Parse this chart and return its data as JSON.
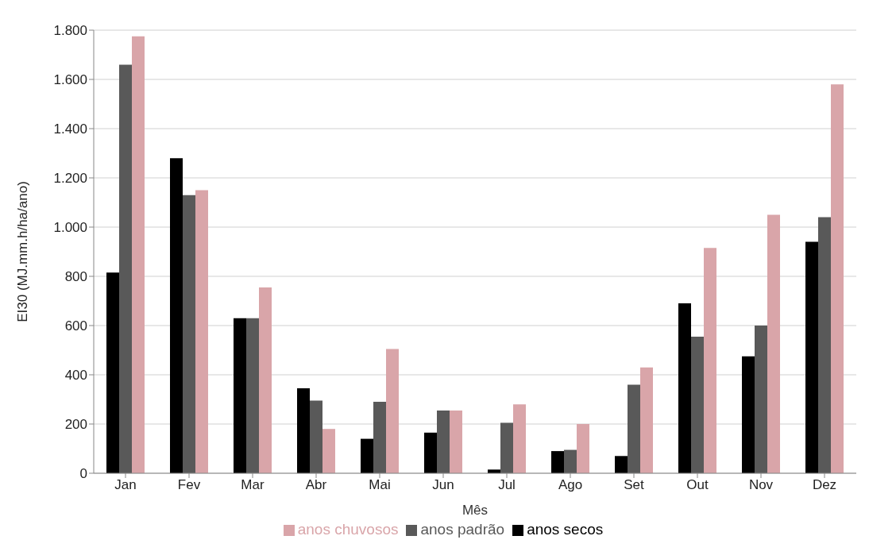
{
  "chart_data": {
    "type": "bar",
    "xlabel": "Mês",
    "ylabel": "EI30 (MJ.mm.h/ha/ano)",
    "categories": [
      "Jan",
      "Fev",
      "Mar",
      "Abr",
      "Mai",
      "Jun",
      "Jul",
      "Ago",
      "Set",
      "Out",
      "Nov",
      "Dez"
    ],
    "series": [
      {
        "name": "anos secos",
        "color": "#000000",
        "values": [
          815,
          1280,
          630,
          345,
          140,
          165,
          15,
          90,
          70,
          690,
          475,
          940
        ]
      },
      {
        "name": "anos padrão",
        "color": "#595959",
        "values": [
          1660,
          1130,
          630,
          295,
          290,
          255,
          205,
          95,
          360,
          555,
          600,
          1040
        ]
      },
      {
        "name": "anos chuvosos",
        "color": "#d9a5a9",
        "values": [
          1775,
          1150,
          755,
          180,
          505,
          255,
          280,
          200,
          430,
          915,
          1050,
          1580
        ]
      }
    ],
    "ylim": [
      0,
      1800
    ],
    "yticks": [
      0,
      200,
      400,
      600,
      800,
      {
        "value": 1000,
        "label": "1.000"
      },
      {
        "value": 1200,
        "label": "1.200"
      },
      {
        "value": 1400,
        "label": "1.400"
      },
      {
        "value": 1600,
        "label": "1.600"
      },
      {
        "value": 1800,
        "label": "1.800"
      }
    ],
    "grid": "y",
    "legend": "bottom"
  }
}
